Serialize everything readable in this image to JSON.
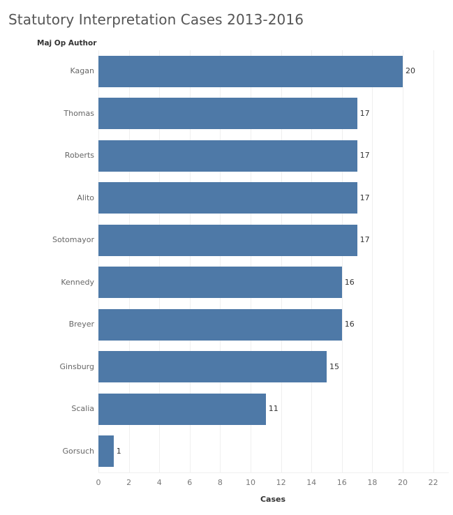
{
  "chart_data": {
    "type": "bar",
    "orientation": "horizontal",
    "title": "Statutory Interpretation Cases 2013-2016",
    "row_header": "Maj Op Author",
    "xlabel": "Cases",
    "ylabel": "Maj Op Author",
    "categories": [
      "Kagan",
      "Thomas",
      "Roberts",
      "Alito",
      "Sotomayor",
      "Kennedy",
      "Breyer",
      "Ginsburg",
      "Scalia",
      "Gorsuch"
    ],
    "values": [
      20,
      17,
      17,
      17,
      17,
      16,
      16,
      15,
      11,
      1
    ],
    "value_labels": [
      "20",
      "17",
      "17",
      "17",
      "17",
      "16",
      "16",
      "15",
      "11",
      "1"
    ],
    "xlim": [
      0,
      23
    ],
    "xticks": [
      "0",
      "2",
      "4",
      "6",
      "8",
      "10",
      "12",
      "14",
      "16",
      "18",
      "20",
      "22"
    ],
    "grid": true,
    "bar_color": "#4e79a7",
    "legend": null
  }
}
